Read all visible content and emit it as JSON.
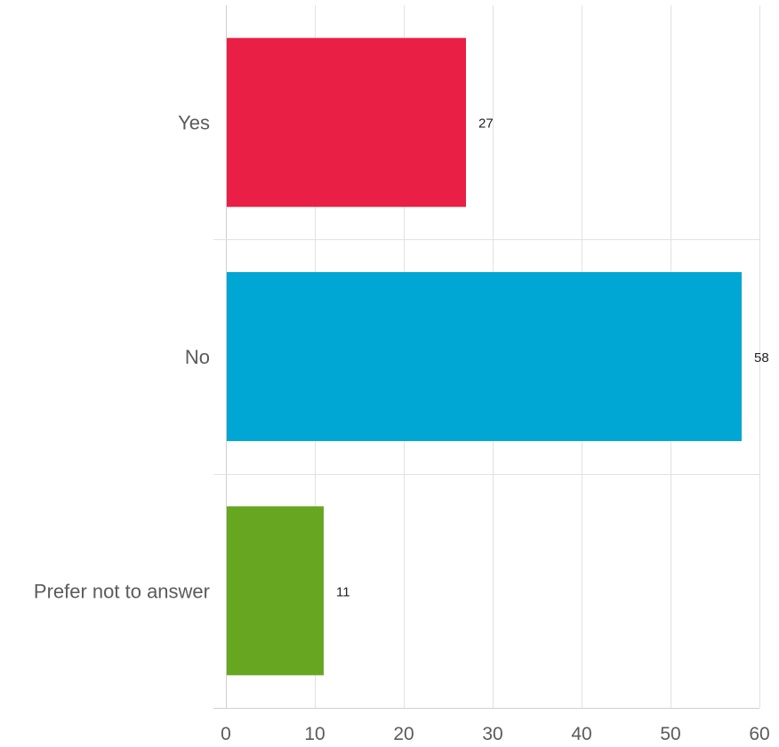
{
  "chart_data": {
    "type": "bar",
    "orientation": "horizontal",
    "categories": [
      "Yes",
      "No",
      "Prefer not to answer"
    ],
    "values": [
      27,
      58,
      11
    ],
    "colors": [
      "#e91f45",
      "#00a6d4",
      "#67a621"
    ],
    "data_labels": [
      "27",
      "58",
      "11"
    ],
    "xlim": [
      0,
      60
    ],
    "x_ticks": [
      0,
      10,
      20,
      30,
      40,
      50,
      60
    ],
    "x_tick_labels": [
      "0",
      "10",
      "20",
      "30",
      "40",
      "50",
      "60"
    ],
    "grid": true,
    "legend": "none"
  }
}
